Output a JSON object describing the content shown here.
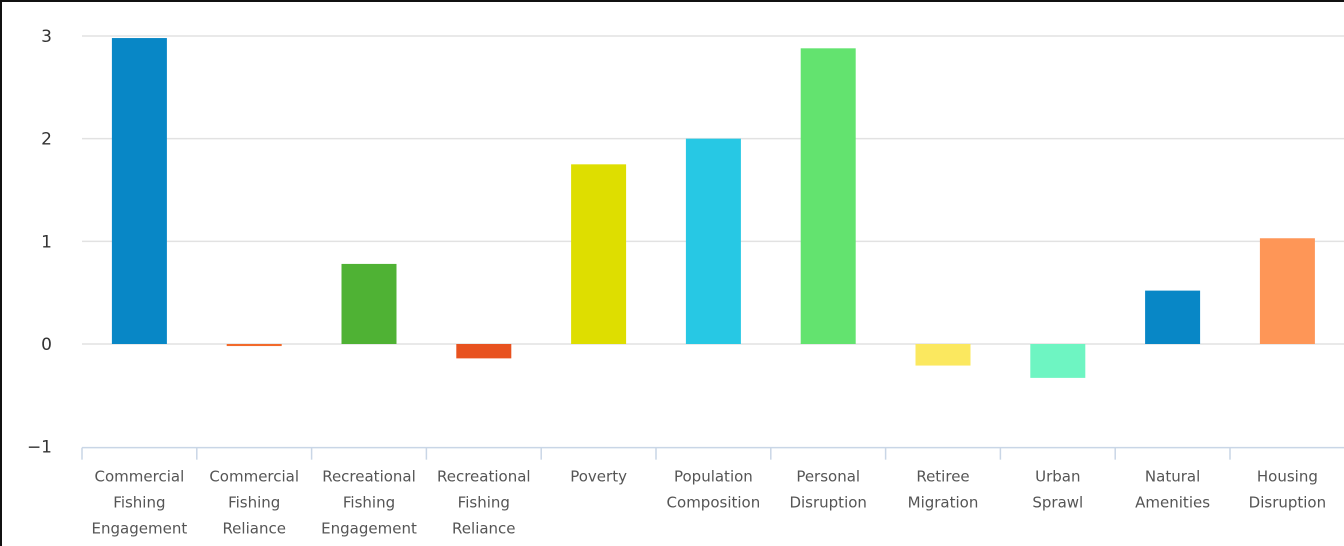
{
  "chart_data": {
    "type": "bar",
    "categories": [
      [
        "Commercial",
        "Fishing",
        "Engagement"
      ],
      [
        "Commercial",
        "Fishing",
        "Reliance"
      ],
      [
        "Recreational",
        "Fishing",
        "Engagement"
      ],
      [
        "Recreational",
        "Fishing",
        "Reliance"
      ],
      [
        "Poverty"
      ],
      [
        "Population",
        "Composition"
      ],
      [
        "Personal",
        "Disruption"
      ],
      [
        "Retiree",
        "Migration"
      ],
      [
        "Urban",
        "Sprawl"
      ],
      [
        "Natural",
        "Amenities"
      ],
      [
        "Housing",
        "Disruption"
      ]
    ],
    "values": [
      2.98,
      -0.02,
      0.78,
      -0.14,
      1.75,
      2.0,
      2.88,
      -0.21,
      -0.33,
      0.52,
      1.03
    ],
    "colors": [
      "#0887c6",
      "#f26a2b",
      "#4fb234",
      "#e8521f",
      "#dede00",
      "#27c8e4",
      "#63e36f",
      "#fbe85f",
      "#6ef5c2",
      "#0887c6",
      "#fe9657"
    ],
    "yticks": [
      3,
      2,
      1,
      0,
      -1
    ],
    "ylim": [
      -1,
      3
    ],
    "grid": true,
    "title": "",
    "xlabel": "",
    "ylabel": ""
  }
}
